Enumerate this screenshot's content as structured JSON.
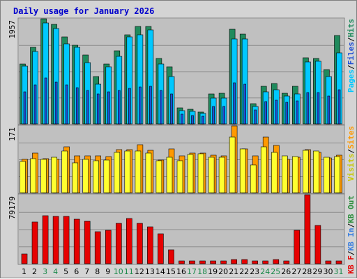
{
  "title": "Daily usage for January 2026",
  "colors": {
    "background": "#d4d4d4",
    "plot_bg": "#c0c0c0",
    "gridline": "#8c8c8c",
    "title_text": "#0000cc",
    "hits": "#1f8a5c",
    "files": "#00c8ff",
    "pages": "#1f4fd6",
    "visits": "#ffff30",
    "sites": "#ff9900",
    "kb_in": "#3a7fe0",
    "kb_out": "#2f8f3f",
    "kb_f": "#e60000",
    "weekend_label": "#1a8a4a",
    "weekday_label": "#000000"
  },
  "chart_data": [
    {
      "type": "bar",
      "panel": "top",
      "ymax_label": "1957",
      "ylim": [
        0,
        1957
      ],
      "grid": true,
      "legend_text": [
        {
          "text": "Pages",
          "color": "#00c8ff"
        },
        {
          "text": "/",
          "color": "#000000"
        },
        {
          "text": "Files",
          "color": "#1f4fd6"
        },
        {
          "text": "/",
          "color": "#000000"
        },
        {
          "text": "Hits",
          "color": "#1f8a5c"
        }
      ],
      "categories": [
        "1",
        "2",
        "3",
        "4",
        "5",
        "6",
        "7",
        "8",
        "9",
        "10",
        "11",
        "12",
        "13",
        "14",
        "15",
        "16",
        "17",
        "18",
        "19",
        "20",
        "21",
        "22",
        "23",
        "24",
        "25",
        "26",
        "27",
        "28",
        "29",
        "30",
        "31"
      ],
      "series": [
        {
          "name": "Hits",
          "values": [
            1120,
            1420,
            1957,
            1850,
            1620,
            1470,
            1280,
            880,
            1120,
            1360,
            1660,
            1820,
            1810,
            1220,
            1060,
            300,
            270,
            220,
            560,
            570,
            1760,
            1670,
            380,
            700,
            750,
            570,
            700,
            1230,
            1220,
            1010,
            1650
          ]
        },
        {
          "name": "Files",
          "values": [
            1070,
            1350,
            1880,
            1770,
            1490,
            1420,
            1140,
            740,
            1060,
            1260,
            1620,
            1660,
            1750,
            1110,
            880,
            250,
            230,
            190,
            480,
            480,
            1580,
            1580,
            330,
            590,
            640,
            520,
            560,
            1150,
            1160,
            880,
            1320
          ]
        },
        {
          "name": "Pages",
          "values": [
            600,
            720,
            860,
            780,
            720,
            680,
            620,
            560,
            600,
            620,
            660,
            690,
            700,
            620,
            560,
            180,
            160,
            140,
            320,
            320,
            760,
            740,
            260,
            420,
            440,
            400,
            430,
            580,
            580,
            520,
            640
          ]
        }
      ]
    },
    {
      "type": "bar",
      "panel": "middle",
      "ymax_label": "171",
      "ylim": [
        0,
        171
      ],
      "grid": true,
      "legend_text": [
        {
          "text": "Visits",
          "color": "#c8c800"
        },
        {
          "text": "/",
          "color": "#000000"
        },
        {
          "text": "Sites",
          "color": "#ff9900"
        }
      ],
      "categories": [
        "1",
        "2",
        "3",
        "4",
        "5",
        "6",
        "7",
        "8",
        "9",
        "10",
        "11",
        "12",
        "13",
        "14",
        "15",
        "16",
        "17",
        "18",
        "19",
        "20",
        "21",
        "22",
        "23",
        "24",
        "25",
        "26",
        "27",
        "28",
        "29",
        "30",
        "31"
      ],
      "series": [
        {
          "name": "Visits",
          "values": [
            80,
            88,
            85,
            90,
            106,
            77,
            86,
            82,
            84,
            103,
            106,
            107,
            102,
            82,
            90,
            82,
            98,
            100,
            90,
            90,
            142,
            112,
            72,
            118,
            104,
            94,
            93,
            108,
            107,
            90,
            93
          ]
        },
        {
          "name": "Sites",
          "values": [
            85,
            102,
            88,
            86,
            118,
            94,
            94,
            94,
            92,
            111,
            110,
            123,
            108,
            84,
            112,
            94,
            102,
            102,
            96,
            95,
            171,
            112,
            94,
            142,
            121,
            86,
            90,
            111,
            104,
            89,
            97
          ]
        }
      ]
    },
    {
      "type": "bar",
      "panel": "bottom",
      "ymax_label": "79179",
      "ylim": [
        0,
        79179
      ],
      "grid": true,
      "legend_text": [
        {
          "text": "KB F",
          "color": "#e60000"
        },
        {
          "text": "/",
          "color": "#000000"
        },
        {
          "text": "KB In",
          "color": "#3a7fe0"
        },
        {
          "text": "/",
          "color": "#000000"
        },
        {
          "text": "KB Out",
          "color": "#2f8f3f"
        }
      ],
      "categories": [
        "1",
        "2",
        "3",
        "4",
        "5",
        "6",
        "7",
        "8",
        "9",
        "10",
        "11",
        "12",
        "13",
        "14",
        "15",
        "16",
        "17",
        "18",
        "19",
        "20",
        "21",
        "22",
        "23",
        "24",
        "25",
        "26",
        "27",
        "28",
        "29",
        "30",
        "31"
      ],
      "series": [
        {
          "name": "KB F",
          "values": [
            11000,
            48000,
            55000,
            54000,
            54000,
            51000,
            49000,
            37000,
            38000,
            46000,
            52000,
            46000,
            42000,
            34000,
            16000,
            3000,
            3000,
            3000,
            3000,
            3000,
            5000,
            5000,
            3000,
            3000,
            5000,
            3000,
            38000,
            79179,
            44000,
            3000,
            3000
          ]
        }
      ]
    }
  ],
  "x_labels": [
    {
      "day": "1",
      "weekend": false
    },
    {
      "day": "2",
      "weekend": false
    },
    {
      "day": "3",
      "weekend": true
    },
    {
      "day": "4",
      "weekend": true
    },
    {
      "day": "5",
      "weekend": false
    },
    {
      "day": "6",
      "weekend": false
    },
    {
      "day": "7",
      "weekend": false
    },
    {
      "day": "8",
      "weekend": false
    },
    {
      "day": "9",
      "weekend": false
    },
    {
      "day": "10",
      "weekend": true
    },
    {
      "day": "11",
      "weekend": true
    },
    {
      "day": "12",
      "weekend": false
    },
    {
      "day": "13",
      "weekend": false
    },
    {
      "day": "14",
      "weekend": false
    },
    {
      "day": "15",
      "weekend": false
    },
    {
      "day": "16",
      "weekend": false
    },
    {
      "day": "17",
      "weekend": true
    },
    {
      "day": "18",
      "weekend": true
    },
    {
      "day": "19",
      "weekend": false
    },
    {
      "day": "20",
      "weekend": false
    },
    {
      "day": "21",
      "weekend": false
    },
    {
      "day": "22",
      "weekend": false
    },
    {
      "day": "23",
      "weekend": false
    },
    {
      "day": "24",
      "weekend": true
    },
    {
      "day": "25",
      "weekend": true
    },
    {
      "day": "26",
      "weekend": false
    },
    {
      "day": "27",
      "weekend": false
    },
    {
      "day": "28",
      "weekend": false
    },
    {
      "day": "29",
      "weekend": false
    },
    {
      "day": "30",
      "weekend": false
    },
    {
      "day": "31",
      "weekend": true
    }
  ]
}
